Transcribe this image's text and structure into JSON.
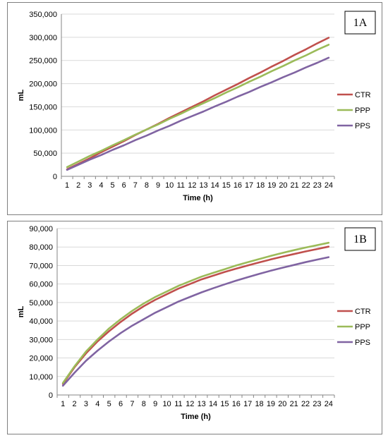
{
  "chart_data": [
    {
      "panel_label": "1A",
      "type": "line",
      "title": "",
      "xlabel": "Time (h)",
      "ylabel": "mL",
      "x": [
        1,
        2,
        3,
        4,
        5,
        6,
        7,
        8,
        9,
        10,
        11,
        12,
        13,
        14,
        15,
        16,
        17,
        18,
        19,
        20,
        21,
        22,
        23,
        24
      ],
      "ylim": [
        0,
        350000
      ],
      "yticks": [
        "0",
        "50,000",
        "100,000",
        "150,000",
        "200,000",
        "250,000",
        "300,000",
        "350,000"
      ],
      "ytick_values": [
        0,
        50000,
        100000,
        150000,
        200000,
        250000,
        300000,
        350000
      ],
      "grid": "horizontal",
      "legend": "right",
      "series": [
        {
          "name": "CTR",
          "color": "#c0504d",
          "values": [
            15000,
            27000,
            39000,
            52000,
            64000,
            76000,
            89000,
            101000,
            113000,
            126000,
            138000,
            150000,
            162000,
            175000,
            187000,
            199000,
            212000,
            224000,
            237000,
            249000,
            262000,
            274000,
            287000,
            299000
          ]
        },
        {
          "name": "PPP",
          "color": "#9bbb59",
          "values": [
            20000,
            32000,
            44000,
            55000,
            67000,
            78000,
            90000,
            101000,
            112000,
            124000,
            135000,
            147000,
            158000,
            169000,
            181000,
            192000,
            204000,
            215000,
            227000,
            238000,
            250000,
            261000,
            273000,
            284000
          ]
        },
        {
          "name": "PPS",
          "color": "#8064a2",
          "values": [
            14000,
            25000,
            36000,
            46000,
            57000,
            67000,
            78000,
            88000,
            99000,
            109000,
            120000,
            130000,
            140000,
            151000,
            161000,
            172000,
            182000,
            193000,
            203000,
            214000,
            224000,
            235000,
            245000,
            256000
          ]
        }
      ]
    },
    {
      "panel_label": "1B",
      "type": "line",
      "title": "",
      "xlabel": "Time (h)",
      "ylabel": "mL",
      "x": [
        1,
        2,
        3,
        4,
        5,
        6,
        7,
        8,
        9,
        10,
        11,
        12,
        13,
        14,
        15,
        16,
        17,
        18,
        19,
        20,
        21,
        22,
        23,
        24
      ],
      "ylim": [
        0,
        90000
      ],
      "yticks": [
        "0",
        "10,000",
        "20,000",
        "30,000",
        "40,000",
        "50,000",
        "60,000",
        "70,000",
        "80,000",
        "90,000"
      ],
      "ytick_values": [
        0,
        10000,
        20000,
        30000,
        40000,
        50000,
        60000,
        70000,
        80000,
        90000
      ],
      "grid": "horizontal",
      "legend": "right",
      "series": [
        {
          "name": "CTR",
          "color": "#c0504d",
          "values": [
            6000,
            15000,
            22500,
            29000,
            34500,
            39500,
            44000,
            48000,
            51500,
            54500,
            57500,
            60000,
            62500,
            64500,
            66500,
            68300,
            70000,
            71700,
            73300,
            74800,
            76200,
            77600,
            78900,
            80200
          ]
        },
        {
          "name": "PPP",
          "color": "#9bbb59",
          "values": [
            6500,
            15500,
            23500,
            30000,
            36000,
            41000,
            45500,
            49500,
            53000,
            56000,
            59000,
            61500,
            64000,
            66000,
            68000,
            70000,
            71800,
            73500,
            75200,
            76800,
            78300,
            79700,
            81000,
            82300
          ]
        },
        {
          "name": "PPS",
          "color": "#8064a2",
          "values": [
            5000,
            12000,
            18500,
            24000,
            29000,
            33500,
            37500,
            41000,
            44500,
            47500,
            50500,
            53000,
            55500,
            57700,
            59800,
            61800,
            63700,
            65500,
            67200,
            68800,
            70300,
            71800,
            73200,
            74500
          ]
        }
      ]
    }
  ]
}
